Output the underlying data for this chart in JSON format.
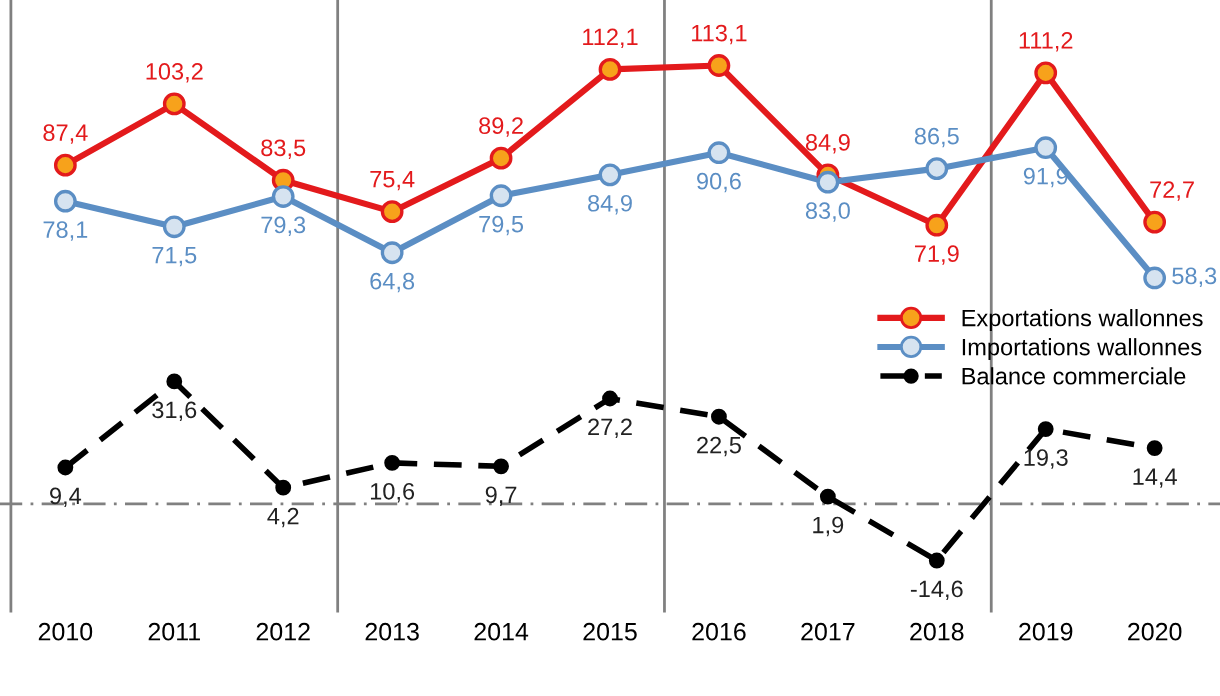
{
  "chart_data": {
    "type": "line",
    "x": [
      2010,
      2011,
      2012,
      2013,
      2014,
      2015,
      2016,
      2017,
      2018,
      2019,
      2020
    ],
    "xlim": [
      2009.4,
      2020.6
    ],
    "ylim": [
      -28,
      130
    ],
    "xticks": [
      2010,
      2011,
      2012,
      2013,
      2014,
      2015,
      2016,
      2017,
      2018,
      2019,
      2020
    ],
    "tick_labels": "x",
    "grid": false,
    "legend": "center right",
    "marker": "circle",
    "series": [
      {
        "name": "Exportations wallonnes",
        "color": "#e31a1c",
        "line_style": "solid",
        "values": [
          87.4,
          103.2,
          83.5,
          75.4,
          89.2,
          112.1,
          113.1,
          84.9,
          71.9,
          111.2,
          72.7
        ],
        "value_labels": [
          "87,4",
          "103,2",
          "83,5",
          "75,4",
          "89,2",
          "112,1",
          "113,1",
          "84,9",
          "71,9",
          "111,2",
          "72,7"
        ]
      },
      {
        "name": "Importations wallonnes",
        "color": "#5b8ec4",
        "line_style": "solid",
        "values": [
          78.1,
          71.5,
          79.3,
          64.8,
          79.5,
          84.9,
          90.6,
          83.0,
          86.5,
          91.9,
          58.3
        ],
        "value_labels": [
          "78,1",
          "71,5",
          "79,3",
          "64,8",
          "79,5",
          "84,9",
          "90,6",
          "83,0",
          "86,5",
          "91,9",
          "58,3"
        ]
      },
      {
        "name": "Balance commerciale",
        "color": "#000000",
        "line_style": "dashed",
        "values": [
          9.4,
          31.6,
          4.2,
          10.6,
          9.7,
          27.2,
          22.5,
          1.9,
          -14.6,
          19.3,
          14.4
        ],
        "value_labels": [
          "9,4",
          "31,6",
          "4,2",
          "10,6",
          "9,7",
          "27,2",
          "22,5",
          "1,9",
          "-14,6",
          "19,3",
          "14,4"
        ]
      }
    ],
    "ref_lines": [
      {
        "axis": "y",
        "value": 0,
        "color": "#808080",
        "line_style": "dashdot"
      },
      {
        "axis": "x",
        "value": 2009.5,
        "color": "#808080",
        "line_style": "solid"
      },
      {
        "axis": "x",
        "value": 2012.5,
        "color": "#808080",
        "line_style": "solid"
      },
      {
        "axis": "x",
        "value": 2015.5,
        "color": "#808080",
        "line_style": "solid"
      },
      {
        "axis": "x",
        "value": 2018.5,
        "color": "#808080",
        "line_style": "solid"
      }
    ]
  }
}
